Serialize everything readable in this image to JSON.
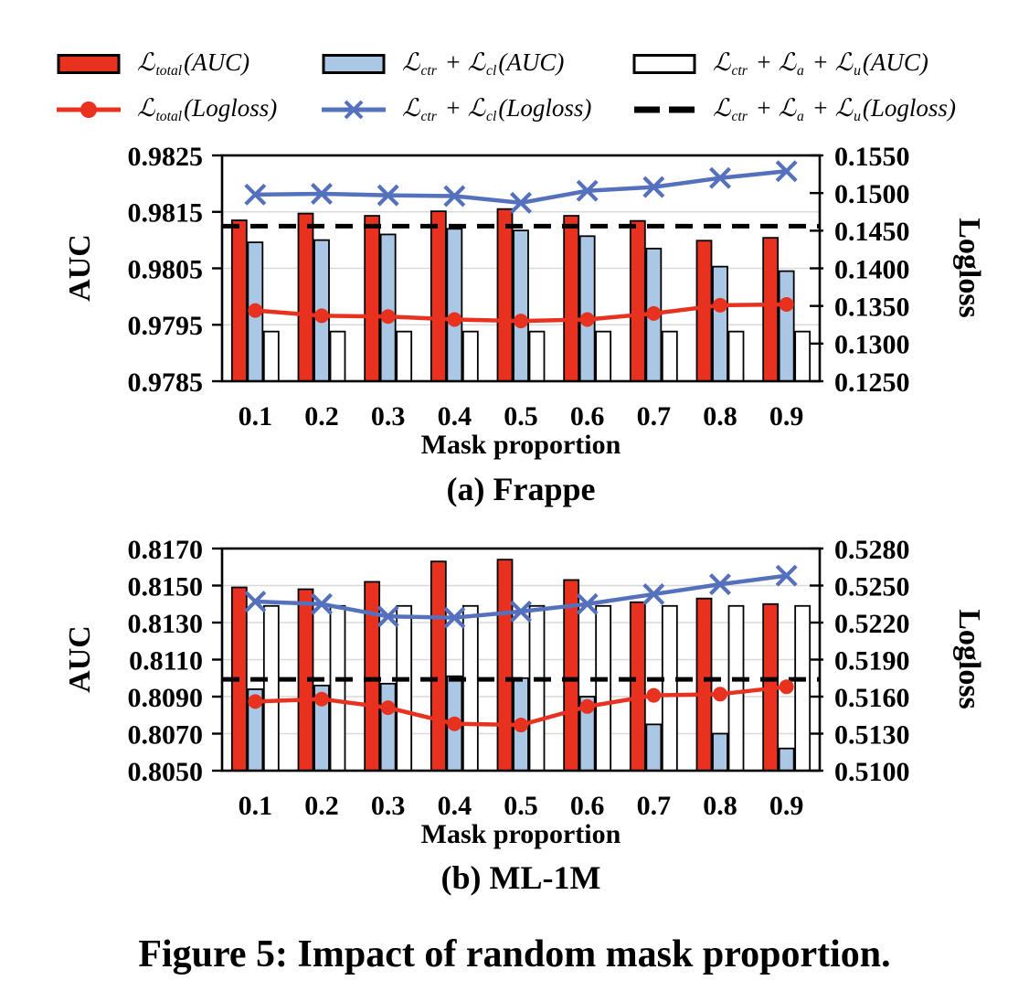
{
  "figure": {
    "caption": "Figure 5: Impact of random mask proportion."
  },
  "legend": {
    "items": [
      {
        "id": "total-auc",
        "swatch": "bar",
        "color": "#e8321f",
        "tokens": [
          {
            "t": "ℒ"
          },
          {
            "t": "total",
            "sub": true
          },
          {
            "t": "("
          },
          {
            "t": "AUC"
          },
          {
            "t": ")"
          }
        ]
      },
      {
        "id": "ctr-cl-auc",
        "swatch": "bar",
        "color": "#abc7e6",
        "tokens": [
          {
            "t": "ℒ"
          },
          {
            "t": "ctr",
            "sub": true
          },
          {
            "t": " + "
          },
          {
            "t": "ℒ"
          },
          {
            "t": "cl",
            "sub": true
          },
          {
            "t": "("
          },
          {
            "t": "AUC"
          },
          {
            "t": ")"
          }
        ]
      },
      {
        "id": "ctr-a-u-auc",
        "swatch": "bar",
        "color": "#ffffff",
        "tokens": [
          {
            "t": "ℒ"
          },
          {
            "t": "ctr",
            "sub": true
          },
          {
            "t": " + "
          },
          {
            "t": "ℒ"
          },
          {
            "t": "a",
            "sub": true
          },
          {
            "t": " + "
          },
          {
            "t": "ℒ"
          },
          {
            "t": "u",
            "sub": true
          },
          {
            "t": "("
          },
          {
            "t": "AUC"
          },
          {
            "t": ")"
          }
        ]
      },
      {
        "id": "total-logloss",
        "swatch": "line-circle",
        "color": "#e8321f",
        "tokens": [
          {
            "t": "ℒ"
          },
          {
            "t": "total",
            "sub": true
          },
          {
            "t": "("
          },
          {
            "t": "Logloss"
          },
          {
            "t": ")"
          }
        ]
      },
      {
        "id": "ctr-cl-logloss",
        "swatch": "line-x",
        "color": "#5571bd",
        "tokens": [
          {
            "t": "ℒ"
          },
          {
            "t": "ctr",
            "sub": true
          },
          {
            "t": " + "
          },
          {
            "t": "ℒ"
          },
          {
            "t": "cl",
            "sub": true
          },
          {
            "t": "("
          },
          {
            "t": "Logloss"
          },
          {
            "t": ")"
          }
        ]
      },
      {
        "id": "ctr-a-u-logloss",
        "swatch": "dashes",
        "color": "#000000",
        "tokens": [
          {
            "t": "ℒ"
          },
          {
            "t": "ctr",
            "sub": true
          },
          {
            "t": " + "
          },
          {
            "t": "ℒ"
          },
          {
            "t": "a",
            "sub": true
          },
          {
            "t": " + "
          },
          {
            "t": "ℒ"
          },
          {
            "t": "u",
            "sub": true
          },
          {
            "t": "("
          },
          {
            "t": "Logloss"
          },
          {
            "t": ")"
          }
        ]
      }
    ]
  },
  "chart_data": [
    {
      "type": "bar+line-dual-axis",
      "title": "(a) Frappe",
      "xlabel": "Mask proportion",
      "ylabel_left": "AUC",
      "ylabel_right": "Logloss",
      "grid": "horizontal, at inner left-axis ticks",
      "legend_position": "top",
      "categories": [
        "0.1",
        "0.2",
        "0.3",
        "0.4",
        "0.5",
        "0.6",
        "0.7",
        "0.8",
        "0.9"
      ],
      "left_axis": {
        "min": 0.9785,
        "max": 0.9825,
        "ticks": [
          0.9785,
          0.9795,
          0.9805,
          0.9815,
          0.9825
        ],
        "tick_labels": [
          "0.9785",
          "0.9795",
          "0.9805",
          "0.9815",
          "0.9825"
        ]
      },
      "right_axis": {
        "min": 0.125,
        "max": 0.155,
        "ticks": [
          0.125,
          0.13,
          0.135,
          0.14,
          0.145,
          0.15,
          0.155
        ],
        "tick_labels": [
          "0.1250",
          "0.1300",
          "0.1350",
          "0.1400",
          "0.1450",
          "0.1500",
          "0.1550"
        ]
      },
      "bar_series": [
        {
          "name": "ℒ_total (AUC)",
          "color": "#e8321f",
          "values": [
            0.98135,
            0.98147,
            0.98143,
            0.98151,
            0.98155,
            0.98143,
            0.98134,
            0.98099,
            0.98104
          ]
        },
        {
          "name": "ℒ_ctr + ℒ_cl (AUC)",
          "color": "#abc7e6",
          "values": [
            0.98096,
            0.981,
            0.9811,
            0.9812,
            0.98117,
            0.98107,
            0.98085,
            0.98053,
            0.98045
          ]
        },
        {
          "name": "ℒ_ctr + ℒ_a + ℒ_u (AUC)",
          "color": "#ffffff",
          "values": [
            0.97938,
            0.97938,
            0.97938,
            0.97938,
            0.97938,
            0.97938,
            0.97938,
            0.97938,
            0.97938
          ]
        }
      ],
      "line_series": [
        {
          "name": "ℒ_total (Logloss)",
          "color": "#e8321f",
          "marker": "circle",
          "values": [
            0.1344,
            0.1337,
            0.1336,
            0.1332,
            0.133,
            0.1332,
            0.134,
            0.1351,
            0.1352
          ]
        },
        {
          "name": "ℒ_ctr + ℒ_cl (Logloss)",
          "color": "#5571bd",
          "marker": "x",
          "values": [
            0.1498,
            0.1499,
            0.1497,
            0.1496,
            0.1487,
            0.1503,
            0.1508,
            0.152,
            0.1529
          ]
        },
        {
          "name": "ℒ_ctr + ℒ_a + ℒ_u (Logloss)",
          "color": "#000000",
          "style": "dashed",
          "values": [
            0.1456,
            0.1456,
            0.1456,
            0.1456,
            0.1456,
            0.1456,
            0.1456,
            0.1456,
            0.1456
          ]
        }
      ]
    },
    {
      "type": "bar+line-dual-axis",
      "title": "(b) ML-1M",
      "xlabel": "Mask proportion",
      "ylabel_left": "AUC",
      "ylabel_right": "Logloss",
      "grid": "horizontal, at inner left-axis ticks",
      "legend_position": "top",
      "categories": [
        "0.1",
        "0.2",
        "0.3",
        "0.4",
        "0.5",
        "0.6",
        "0.7",
        "0.8",
        "0.9"
      ],
      "left_axis": {
        "min": 0.805,
        "max": 0.817,
        "ticks": [
          0.805,
          0.807,
          0.809,
          0.811,
          0.813,
          0.815,
          0.817
        ],
        "tick_labels": [
          "0.8050",
          "0.8070",
          "0.8090",
          "0.8110",
          "0.8130",
          "0.8150",
          "0.8170"
        ]
      },
      "right_axis": {
        "min": 0.51,
        "max": 0.528,
        "ticks": [
          0.51,
          0.513,
          0.516,
          0.519,
          0.522,
          0.525,
          0.528
        ],
        "tick_labels": [
          "0.5100",
          "0.5130",
          "0.5160",
          "0.5190",
          "0.5220",
          "0.5250",
          "0.5280"
        ]
      },
      "bar_series": [
        {
          "name": "ℒ_total (AUC)",
          "color": "#e8321f",
          "values": [
            0.8149,
            0.8148,
            0.8152,
            0.8163,
            0.8164,
            0.8153,
            0.8141,
            0.8143,
            0.814
          ]
        },
        {
          "name": "ℒ_ctr + ℒ_cl (AUC)",
          "color": "#abc7e6",
          "values": [
            0.8094,
            0.8096,
            0.8097,
            0.8101,
            0.81,
            0.809,
            0.8075,
            0.807,
            0.8062
          ]
        },
        {
          "name": "ℒ_ctr + ℒ_a + ℒ_u (AUC)",
          "color": "#ffffff",
          "values": [
            0.8139,
            0.8139,
            0.8139,
            0.8139,
            0.8139,
            0.8139,
            0.8139,
            0.8139,
            0.8139
          ]
        }
      ],
      "line_series": [
        {
          "name": "ℒ_total (Logloss)",
          "color": "#e8321f",
          "marker": "circle",
          "values": [
            0.5156,
            0.5158,
            0.5151,
            0.5138,
            0.5137,
            0.5152,
            0.5161,
            0.5162,
            0.5168
          ]
        },
        {
          "name": "ℒ_ctr + ℒ_cl (Logloss)",
          "color": "#5571bd",
          "marker": "x",
          "values": [
            0.5237,
            0.5235,
            0.5225,
            0.5224,
            0.5229,
            0.5235,
            0.5243,
            0.5251,
            0.5258
          ]
        },
        {
          "name": "ℒ_ctr + ℒ_a + ℒ_u (Logloss)",
          "color": "#000000",
          "style": "dashed",
          "values": [
            0.5174,
            0.5174,
            0.5174,
            0.5174,
            0.5174,
            0.5174,
            0.5174,
            0.5174,
            0.5174
          ]
        }
      ]
    }
  ]
}
